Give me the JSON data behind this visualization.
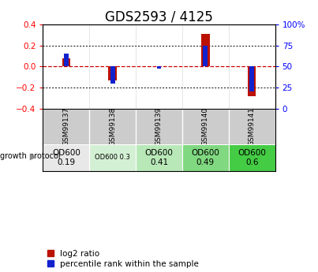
{
  "title": "GDS2593 / 4125",
  "samples": [
    "GSM99137",
    "GSM99138",
    "GSM99139",
    "GSM99140",
    "GSM99141"
  ],
  "log2_ratio": [
    0.08,
    -0.13,
    0.0,
    0.31,
    -0.28
  ],
  "percentile_rank": [
    65,
    30,
    47,
    75,
    20
  ],
  "ylim_left": [
    -0.4,
    0.4
  ],
  "ylim_right": [
    0,
    100
  ],
  "bar_color_red": "#bb1100",
  "bar_color_blue": "#1122cc",
  "dotted_line_color": "#000000",
  "zero_line_color": "#cc0000",
  "growth_labels": [
    "OD600\n0.19",
    "OD600 0.3",
    "OD600\n0.41",
    "OD600\n0.49",
    "OD600\n0.6"
  ],
  "growth_colors": [
    "#e8e8e8",
    "#d4f0d4",
    "#b8e8b8",
    "#80d880",
    "#44cc44"
  ],
  "growth_fontsize": [
    7.5,
    6.0,
    7.5,
    7.5,
    7.5
  ],
  "title_fontsize": 12,
  "tick_fontsize": 7.5,
  "legend_fontsize": 7.5,
  "growth_protocol_text": "growth protocol",
  "label_bg": "#cccccc"
}
